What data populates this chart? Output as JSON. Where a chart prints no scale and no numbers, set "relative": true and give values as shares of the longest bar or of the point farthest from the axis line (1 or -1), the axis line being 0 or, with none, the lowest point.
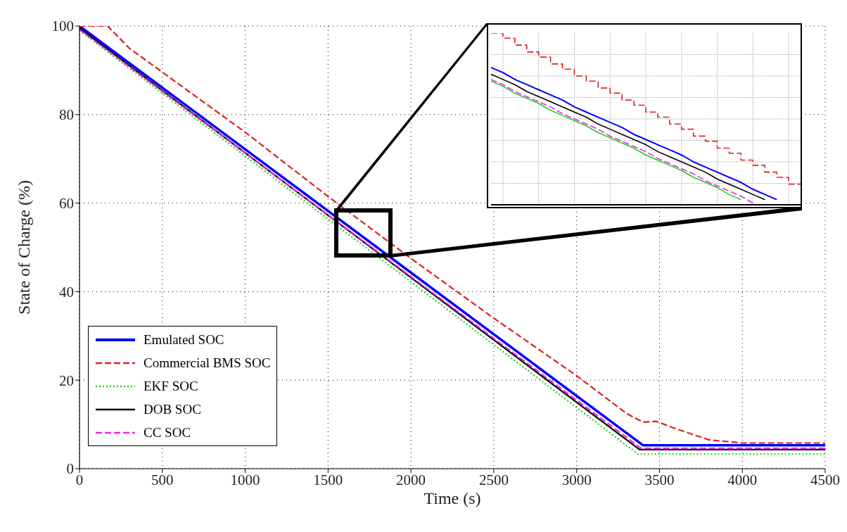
{
  "chart_data": [
    {
      "type": "line",
      "xlabel": "Time (s)",
      "ylabel": "State of Charge (%)",
      "xlim": [
        0,
        4500
      ],
      "ylim": [
        0,
        100
      ],
      "xticks": [
        0,
        500,
        1000,
        1500,
        2000,
        2500,
        3000,
        3500,
        4000,
        4500
      ],
      "yticks": [
        0,
        20,
        40,
        60,
        80,
        100
      ],
      "grid": true,
      "legend": "bottom left",
      "marker": "none",
      "series": [
        {
          "name": "Emulated SOC",
          "color": "#0000ff",
          "line_style": "solid",
          "x": [
            0,
            3400,
            4500
          ],
          "values": [
            100,
            5.3,
            5.3
          ]
        },
        {
          "name": "Commercial BMS SOC",
          "color": "#dd2222",
          "line_style": "dashed",
          "x": [
            0,
            170,
            300,
            1000,
            1500,
            2000,
            2500,
            3000,
            3300,
            3400,
            3480,
            3600,
            3800,
            4000,
            4500
          ],
          "values": [
            100,
            100,
            95,
            76,
            61.5,
            47.5,
            34,
            21,
            12.5,
            10.5,
            10.7,
            9,
            6.5,
            5.8,
            5.8
          ]
        },
        {
          "name": "EKF SOC",
          "color": "#22cc22",
          "line_style": "dotted",
          "x": [
            0,
            3370,
            4500
          ],
          "values": [
            99,
            3.3,
            3.3
          ]
        },
        {
          "name": "DOB SOC",
          "color": "#000000",
          "line_style": "solid",
          "x": [
            0,
            3380,
            4500
          ],
          "values": [
            99.5,
            4.3,
            4.3
          ]
        },
        {
          "name": "CC SOC",
          "color": "#ee22ee",
          "line_style": "dashed",
          "x": [
            0,
            3390,
            4500
          ],
          "values": [
            99.2,
            4.6,
            4.6
          ]
        }
      ]
    },
    {
      "type": "line",
      "relative": true,
      "grid": true,
      "marker": "none",
      "categories": [
        null,
        null,
        null,
        null,
        null,
        null,
        null,
        null,
        null,
        null,
        null,
        null,
        null,
        null,
        null,
        null,
        null,
        null,
        null,
        null,
        null,
        null,
        null,
        null,
        null,
        null,
        null
      ],
      "series": [
        {
          "color": "#0000ff",
          "line_style": "solid",
          "values": [
            0.8,
            0.77,
            0.73,
            0.7,
            0.67,
            0.64,
            0.61,
            0.57,
            0.54,
            0.51,
            0.48,
            0.45,
            0.41,
            0.38,
            0.35,
            0.32,
            0.29,
            0.25,
            0.22,
            0.19,
            0.16,
            0.13,
            0.09,
            0.06,
            0.03,
            null,
            null
          ]
        },
        {
          "type": "step",
          "color": "#dd2222",
          "line_style": "dashed",
          "values": [
            1,
            0.97,
            0.93,
            0.89,
            0.86,
            0.82,
            0.79,
            0.75,
            0.72,
            0.68,
            0.65,
            0.61,
            0.58,
            0.54,
            0.51,
            0.47,
            0.44,
            0.4,
            0.37,
            0.33,
            0.3,
            0.26,
            0.23,
            0.19,
            0.16,
            0.12,
            0.12
          ]
        },
        {
          "color": "#22cc22",
          "line_style": "solid",
          "values": [
            0.72,
            0.69,
            0.65,
            0.62,
            0.59,
            0.55,
            0.52,
            0.49,
            0.46,
            0.42,
            0.39,
            0.36,
            0.33,
            0.29,
            0.26,
            0.23,
            0.2,
            0.16,
            0.13,
            0.1,
            0.06,
            0.03,
            null,
            null,
            null,
            null,
            null
          ]
        },
        {
          "color": "#000000",
          "line_style": "solid",
          "values": [
            0.76,
            0.73,
            0.7,
            0.66,
            0.63,
            0.6,
            0.57,
            0.54,
            0.51,
            0.47,
            0.44,
            0.41,
            0.38,
            0.35,
            0.31,
            0.28,
            0.25,
            0.22,
            0.19,
            0.15,
            0.12,
            0.09,
            0.06,
            0.03,
            null,
            null,
            null
          ]
        },
        {
          "color": "#ee22ee",
          "line_style": "dashed",
          "values": [
            0.73,
            0.7,
            0.66,
            0.63,
            0.6,
            0.57,
            0.53,
            0.5,
            0.47,
            0.44,
            0.4,
            0.37,
            0.34,
            0.31,
            0.27,
            0.24,
            0.21,
            0.18,
            0.14,
            0.11,
            0.08,
            0.05,
            0.01,
            null,
            null,
            null,
            null
          ]
        }
      ]
    }
  ]
}
